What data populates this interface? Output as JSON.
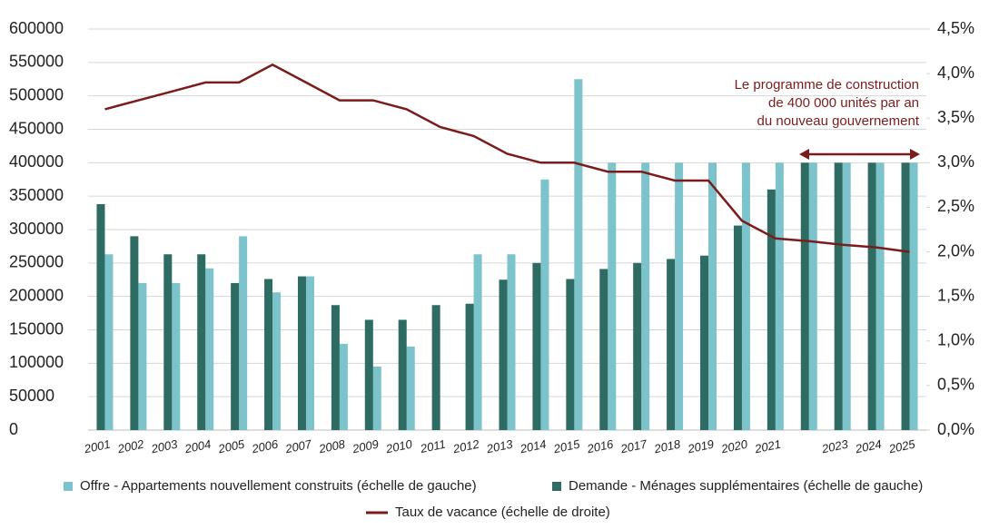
{
  "chart_data": {
    "type": "bar",
    "categories": [
      "2001",
      "2002",
      "2003",
      "2004",
      "2005",
      "2006",
      "2007",
      "2008",
      "2009",
      "2010",
      "2011",
      "2012",
      "2013",
      "2014",
      "2015",
      "2016",
      "2017",
      "2018",
      "2019",
      "2020",
      "2021",
      null,
      "2023",
      "2024",
      "2025"
    ],
    "series": [
      {
        "name": "Offre - Appartements nouvellement construits (échelle de gauche)",
        "color": "#7cc3cc",
        "type": "bar",
        "values": [
          263000,
          220000,
          220000,
          242000,
          290000,
          206000,
          230000,
          129000,
          95000,
          125000,
          null,
          263000,
          263000,
          375000,
          525000,
          400000,
          400000,
          400000,
          400000,
          400000,
          400000,
          400000,
          400000,
          400000,
          400000
        ]
      },
      {
        "name": "Demande - Ménages supplémentaires (échelle de gauche)",
        "color": "#2e6b62",
        "type": "bar",
        "values": [
          338000,
          290000,
          263000,
          263000,
          220000,
          226000,
          230000,
          187000,
          165000,
          165000,
          187000,
          189000,
          225000,
          250000,
          226000,
          241000,
          250000,
          256000,
          261000,
          306000,
          360000,
          400000,
          400000,
          400000,
          400000
        ]
      },
      {
        "name": "Taux de vacance (échelle de droite)",
        "color": "#7b1c1c",
        "type": "line",
        "axis": "y2",
        "values": [
          3.6,
          3.7,
          3.8,
          3.9,
          3.9,
          4.1,
          3.9,
          3.7,
          3.7,
          3.6,
          3.4,
          3.3,
          3.1,
          3.0,
          3.0,
          2.9,
          2.9,
          2.8,
          2.8,
          2.35,
          2.15,
          2.12,
          2.08,
          2.05,
          2.0
        ]
      }
    ],
    "ylim": [
      0,
      600000
    ],
    "yticks": [
      0,
      50000,
      100000,
      150000,
      200000,
      250000,
      300000,
      350000,
      400000,
      450000,
      500000,
      550000,
      600000
    ],
    "y2lim": [
      0,
      4.5
    ],
    "y2ticks": [
      {
        "value": 0,
        "label": "0,0%"
      },
      {
        "value": 0.5,
        "label": "0,5%"
      },
      {
        "value": 1,
        "label": "1,0%"
      },
      {
        "value": 1.5,
        "label": "1,5%"
      },
      {
        "value": 2,
        "label": "2,0%"
      },
      {
        "value": 2.5,
        "label": "2,5%"
      },
      {
        "value": 3,
        "label": "3,0%"
      },
      {
        "value": 3.5,
        "label": "3,5%"
      },
      {
        "value": 4,
        "label": "4,0%"
      },
      {
        "value": 4.5,
        "label": "4,5%"
      }
    ],
    "grid": true,
    "annotation": [
      "Le programme de construction",
      "de 400 000 unités par an",
      "du nouveau gouvernement"
    ],
    "annotation_color": "#7b1c1c"
  }
}
